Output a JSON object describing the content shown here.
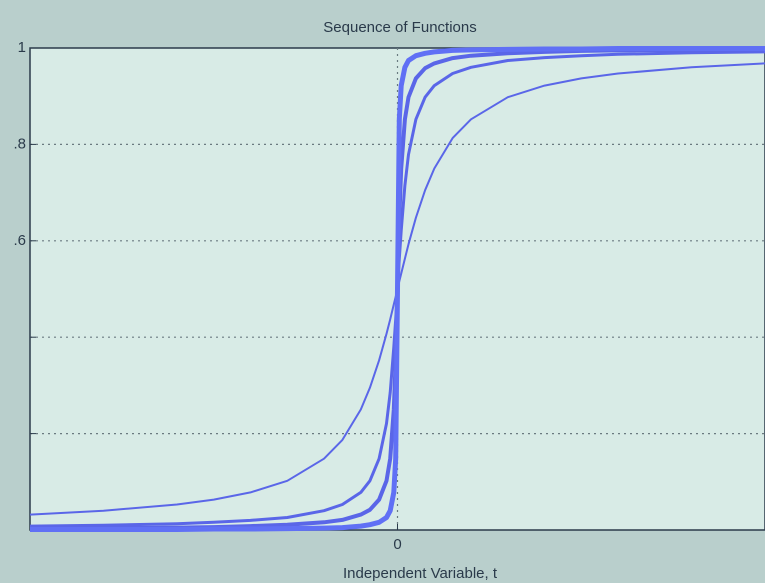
{
  "chart_data": {
    "type": "line",
    "title": "Sequence of Functions",
    "x_label": "Independent Variable, t",
    "x": [
      -10,
      -8,
      -6,
      -5,
      -4,
      -3,
      -2,
      -1.5,
      -1,
      -0.75,
      -0.5,
      -0.3,
      -0.2,
      -0.1,
      -0.05,
      0,
      0.05,
      0.1,
      0.2,
      0.3,
      0.5,
      0.75,
      1,
      1.5,
      2,
      3,
      4,
      5,
      6,
      8,
      10
    ],
    "series": [
      {
        "color": "#5a66e8",
        "values": [
          0.032,
          0.04,
          0.053,
          0.063,
          0.078,
          0.102,
          0.148,
          0.187,
          0.25,
          0.295,
          0.352,
          0.407,
          0.437,
          0.468,
          0.484,
          0.5,
          0.516,
          0.532,
          0.563,
          0.593,
          0.648,
          0.705,
          0.75,
          0.813,
          0.852,
          0.898,
          0.922,
          0.937,
          0.947,
          0.96,
          0.968
        ]
      },
      {
        "color": "#5a66e8",
        "values": [
          0.008,
          0.01,
          0.013,
          0.016,
          0.02,
          0.026,
          0.04,
          0.053,
          0.078,
          0.102,
          0.148,
          0.221,
          0.285,
          0.379,
          0.437,
          0.5,
          0.563,
          0.621,
          0.715,
          0.779,
          0.852,
          0.898,
          0.922,
          0.947,
          0.96,
          0.974,
          0.98,
          0.984,
          0.987,
          0.99,
          0.992
        ]
      },
      {
        "color": "#5a66e8",
        "values": [
          0.003,
          0.004,
          0.005,
          0.006,
          0.008,
          0.011,
          0.016,
          0.021,
          0.032,
          0.042,
          0.063,
          0.102,
          0.148,
          0.25,
          0.352,
          0.5,
          0.648,
          0.75,
          0.852,
          0.898,
          0.937,
          0.958,
          0.968,
          0.979,
          0.984,
          0.989,
          0.992,
          0.994,
          0.995,
          0.996,
          0.997
        ]
      },
      {
        "color": "#6070f5",
        "values": [
          0.001,
          0.001,
          0.001,
          0.002,
          0.002,
          0.003,
          0.004,
          0.005,
          0.008,
          0.011,
          0.016,
          0.026,
          0.04,
          0.078,
          0.148,
          0.5,
          0.852,
          0.922,
          0.96,
          0.974,
          0.984,
          0.989,
          0.992,
          0.995,
          0.996,
          0.997,
          0.998,
          0.998,
          0.999,
          0.999,
          0.999
        ]
      }
    ],
    "xlim": [
      -10,
      10
    ],
    "ylim": [
      0,
      1
    ],
    "xticks": [
      0
    ],
    "yticks": [
      {
        "value": 0.2,
        "label": null
      },
      {
        "value": 0.4,
        "label": null
      },
      {
        "value": 0.6,
        "label": ".6"
      },
      {
        "value": 0.8,
        "label": ".8"
      },
      1
    ],
    "grid": true
  }
}
